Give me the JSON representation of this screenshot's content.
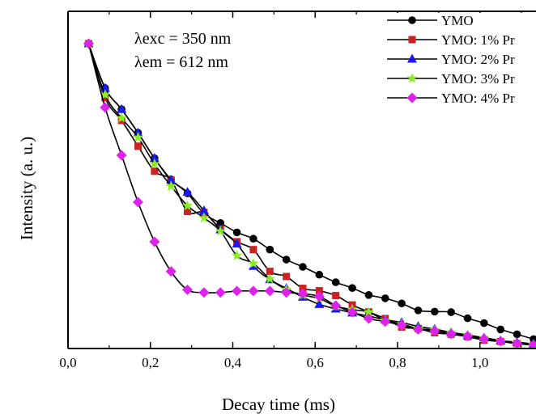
{
  "chart_data": {
    "type": "line",
    "title": "",
    "xlabel": "Decay time (ms)",
    "ylabel": "Intensity (a. u.)",
    "xlim": [
      0.0,
      1.14
    ],
    "ylim": [
      0.0,
      1.0
    ],
    "y_ticks_labeled": false,
    "x_ticks": [
      0.0,
      0.2,
      0.4,
      0.6,
      0.8,
      1.0
    ],
    "x_tick_labels": [
      "0,0",
      "0,2",
      "0,4",
      "0,6",
      "0,8",
      "1,0"
    ],
    "annotations": [
      "λexc = 350 nm",
      "λem = 612 nm"
    ],
    "grid": false,
    "legend_position": "top-right",
    "series": [
      {
        "name": "YMO",
        "color": "#000000",
        "marker": "circle",
        "x": [
          0.05,
          0.09,
          0.13,
          0.17,
          0.21,
          0.25,
          0.29,
          0.33,
          0.37,
          0.41,
          0.45,
          0.49,
          0.53,
          0.57,
          0.61,
          0.65,
          0.69,
          0.73,
          0.77,
          0.81,
          0.85,
          0.89,
          0.93,
          0.97,
          1.01,
          1.05,
          1.09,
          1.13
        ],
        "y": [
          1.0,
          0.853,
          0.783,
          0.705,
          0.621,
          0.551,
          0.505,
          0.438,
          0.407,
          0.376,
          0.355,
          0.319,
          0.286,
          0.262,
          0.236,
          0.211,
          0.192,
          0.169,
          0.158,
          0.141,
          0.118,
          0.114,
          0.112,
          0.092,
          0.076,
          0.055,
          0.039,
          0.023
        ]
      },
      {
        "name": "YMO: 1% Pr",
        "color": "#cc2222",
        "marker": "square",
        "x": [
          0.05,
          0.09,
          0.13,
          0.17,
          0.21,
          0.25,
          0.29,
          0.33,
          0.37,
          0.41,
          0.45,
          0.49,
          0.53,
          0.57,
          0.61,
          0.65,
          0.69,
          0.73,
          0.77,
          0.81,
          0.85,
          0.89,
          0.93,
          0.97,
          1.01,
          1.05,
          1.09,
          1.13
        ],
        "y": [
          1.0,
          0.821,
          0.746,
          0.661,
          0.578,
          0.549,
          0.445,
          0.442,
          0.387,
          0.345,
          0.319,
          0.247,
          0.23,
          0.191,
          0.183,
          0.167,
          0.136,
          0.113,
          0.091,
          0.063,
          0.058,
          0.044,
          0.039,
          0.031,
          0.02,
          0.015,
          0.008,
          0.003
        ]
      },
      {
        "name": "YMO: 2% Pr",
        "color": "#1a1aee",
        "marker": "triangle",
        "x": [
          0.05,
          0.09,
          0.13,
          0.17,
          0.21,
          0.25,
          0.29,
          0.33,
          0.37,
          0.41,
          0.45,
          0.49,
          0.53,
          0.57,
          0.61,
          0.65,
          0.69,
          0.73,
          0.77,
          0.81,
          0.85,
          0.89,
          0.93,
          0.97,
          1.01,
          1.05,
          1.09,
          1.13
        ],
        "y": [
          1.0,
          0.853,
          0.783,
          0.705,
          0.621,
          0.549,
          0.509,
          0.448,
          0.385,
          0.338,
          0.264,
          0.22,
          0.191,
          0.162,
          0.138,
          0.123,
          0.11,
          0.099,
          0.087,
          0.078,
          0.065,
          0.056,
          0.045,
          0.035,
          0.028,
          0.018,
          0.013,
          0.007
        ]
      },
      {
        "name": "YMO: 3% Pr",
        "color": "#88ee22",
        "marker": "star",
        "x": [
          0.05,
          0.09,
          0.13,
          0.17,
          0.21,
          0.25,
          0.29,
          0.33,
          0.37,
          0.41,
          0.45,
          0.49,
          0.53,
          0.57,
          0.61,
          0.65,
          0.69,
          0.73,
          0.77,
          0.81,
          0.85,
          0.89,
          0.93,
          0.97,
          1.01,
          1.05,
          1.09,
          1.13
        ],
        "y": [
          1.0,
          0.831,
          0.754,
          0.69,
          0.602,
          0.529,
          0.464,
          0.424,
          0.38,
          0.299,
          0.273,
          0.222,
          0.187,
          0.169,
          0.157,
          0.132,
          0.121,
          0.112,
          0.085,
          0.073,
          0.058,
          0.053,
          0.045,
          0.037,
          0.027,
          0.018,
          0.01,
          0.005
        ]
      },
      {
        "name": "YMO: 4% Pr",
        "color": "#dd22ee",
        "marker": "diamond",
        "x": [
          0.05,
          0.09,
          0.13,
          0.17,
          0.21,
          0.25,
          0.29,
          0.33,
          0.37,
          0.41,
          0.45,
          0.49,
          0.53,
          0.57,
          0.61,
          0.65,
          0.69,
          0.73,
          0.77,
          0.81,
          0.85,
          0.89,
          0.93,
          0.97,
          1.01,
          1.05,
          1.09,
          1.13
        ],
        "y": [
          1.0,
          0.789,
          0.631,
          0.476,
          0.345,
          0.247,
          0.186,
          0.177,
          0.177,
          0.182,
          0.182,
          0.182,
          0.177,
          0.173,
          0.164,
          0.134,
          0.112,
          0.091,
          0.081,
          0.069,
          0.055,
          0.05,
          0.04,
          0.033,
          0.024,
          0.016,
          0.009,
          0.004
        ]
      }
    ]
  }
}
